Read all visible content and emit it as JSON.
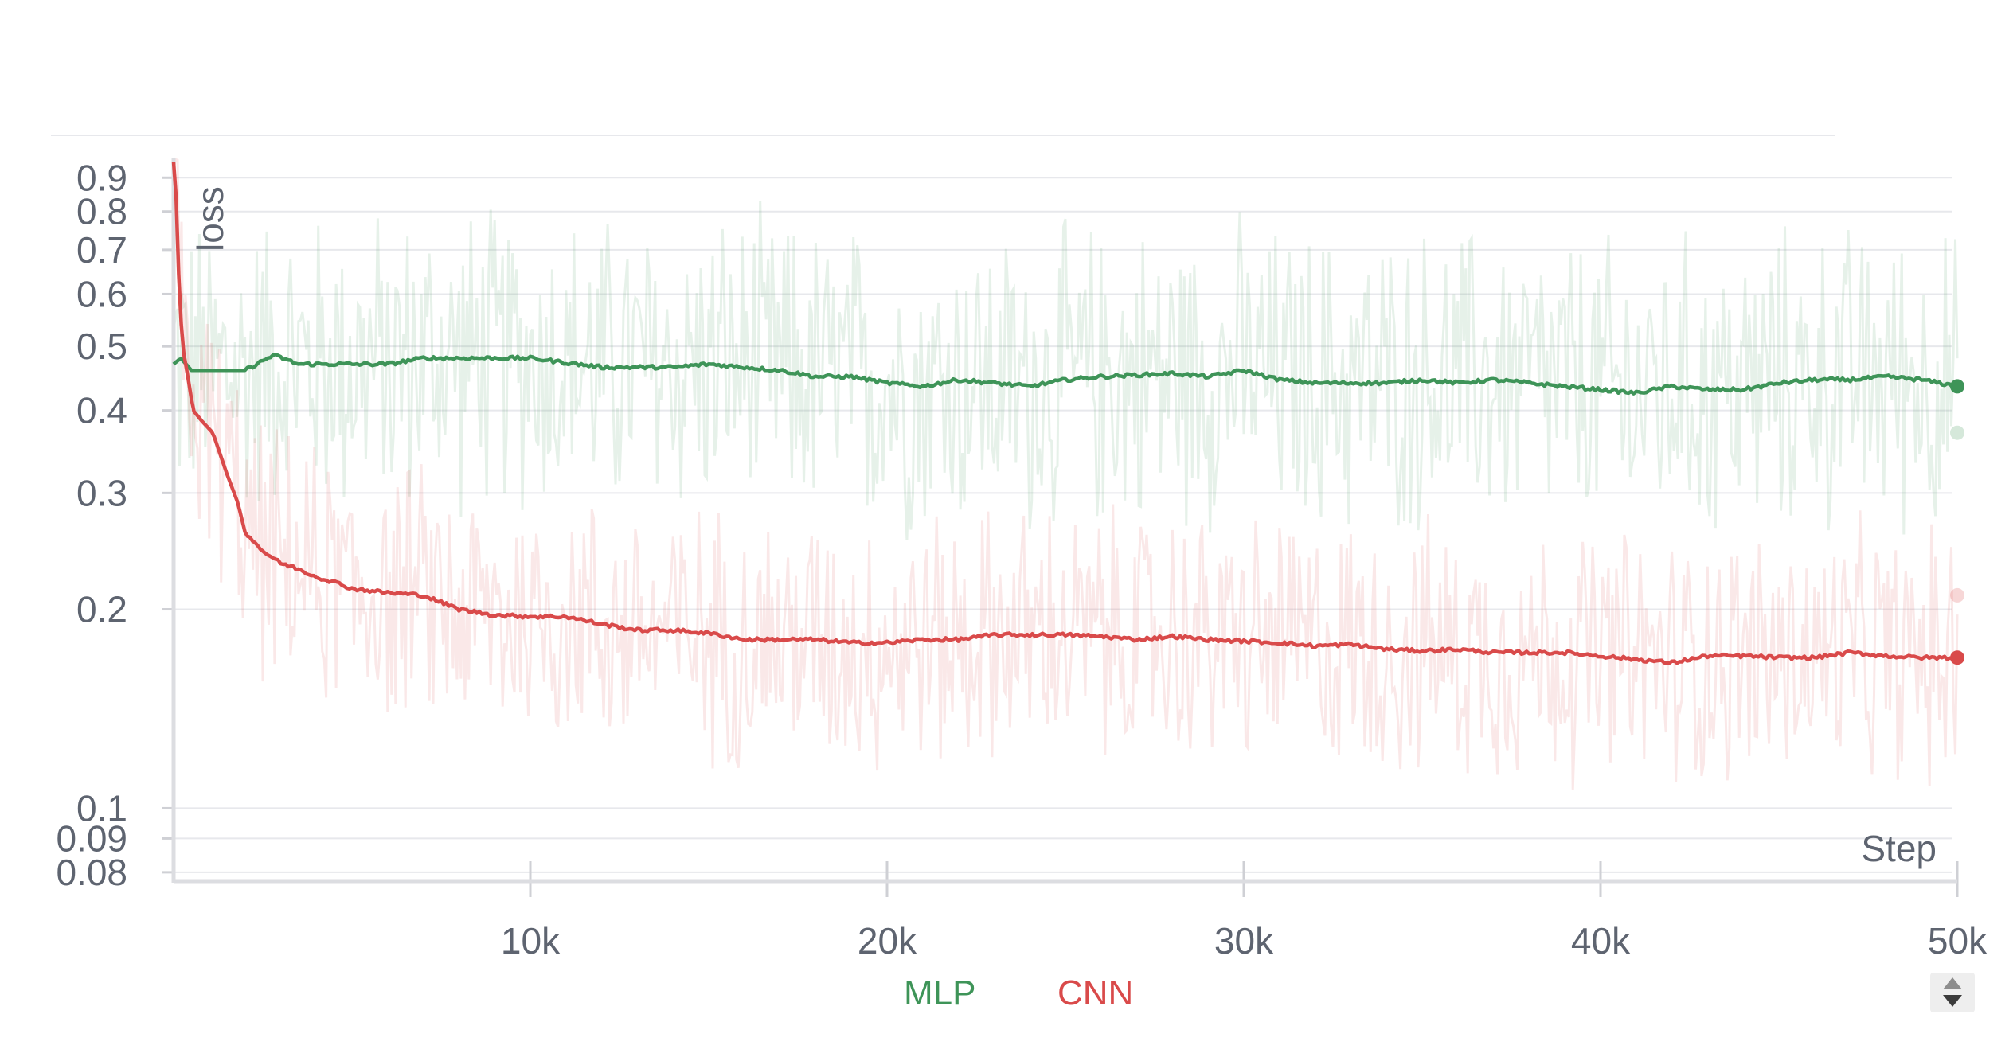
{
  "chart_data": {
    "type": "line",
    "ylabel": "loss",
    "xlabel": "Step",
    "y_scale": "log",
    "xlim": [
      0,
      50000
    ],
    "ylim": [
      0.078,
      0.96
    ],
    "x_ticks": [
      {
        "value": 10000,
        "label": "10k"
      },
      {
        "value": 20000,
        "label": "20k"
      },
      {
        "value": 30000,
        "label": "30k"
      },
      {
        "value": 40000,
        "label": "40k"
      },
      {
        "value": 50000,
        "label": "50k"
      }
    ],
    "y_ticks": [
      {
        "value": 0.9,
        "label": "0.9"
      },
      {
        "value": 0.8,
        "label": "0.8"
      },
      {
        "value": 0.7,
        "label": "0.7"
      },
      {
        "value": 0.6,
        "label": "0.6"
      },
      {
        "value": 0.5,
        "label": "0.5"
      },
      {
        "value": 0.4,
        "label": "0.4"
      },
      {
        "value": 0.3,
        "label": "0.3"
      },
      {
        "value": 0.2,
        "label": "0.2"
      },
      {
        "value": 0.1,
        "label": "0.1"
      },
      {
        "value": 0.09,
        "label": "0.09"
      },
      {
        "value": 0.08,
        "label": "0.08"
      }
    ],
    "grid": true,
    "legend_position": "bottom-center",
    "series": [
      {
        "name": "MLP",
        "color": "#3e9458",
        "raw_band": {
          "low": 0.25,
          "high": 0.72,
          "last": 0.37
        },
        "smoothed": [
          [
            0,
            0.47
          ],
          [
            200,
            0.48
          ],
          [
            500,
            0.46
          ],
          [
            1000,
            0.46
          ],
          [
            2000,
            0.46
          ],
          [
            2800,
            0.485
          ],
          [
            3500,
            0.47
          ],
          [
            5000,
            0.47
          ],
          [
            6000,
            0.47
          ],
          [
            7000,
            0.48
          ],
          [
            9000,
            0.48
          ],
          [
            10000,
            0.48
          ],
          [
            12000,
            0.465
          ],
          [
            14000,
            0.465
          ],
          [
            15000,
            0.47
          ],
          [
            17000,
            0.46
          ],
          [
            18000,
            0.45
          ],
          [
            19000,
            0.45
          ],
          [
            20000,
            0.44
          ],
          [
            21000,
            0.435
          ],
          [
            22000,
            0.445
          ],
          [
            23000,
            0.44
          ],
          [
            24000,
            0.435
          ],
          [
            25000,
            0.445
          ],
          [
            26000,
            0.45
          ],
          [
            28000,
            0.455
          ],
          [
            29000,
            0.45
          ],
          [
            30000,
            0.46
          ],
          [
            31000,
            0.445
          ],
          [
            32000,
            0.44
          ],
          [
            33000,
            0.44
          ],
          [
            34000,
            0.44
          ],
          [
            35000,
            0.445
          ],
          [
            36000,
            0.44
          ],
          [
            37000,
            0.445
          ],
          [
            38000,
            0.44
          ],
          [
            39000,
            0.435
          ],
          [
            40000,
            0.43
          ],
          [
            41000,
            0.425
          ],
          [
            42000,
            0.435
          ],
          [
            43000,
            0.43
          ],
          [
            44000,
            0.43
          ],
          [
            45000,
            0.44
          ],
          [
            46000,
            0.445
          ],
          [
            47000,
            0.445
          ],
          [
            48000,
            0.45
          ],
          [
            49000,
            0.445
          ],
          [
            50000,
            0.435
          ]
        ]
      },
      {
        "name": "CNN",
        "color": "#d94a4a",
        "raw_band": {
          "low": 0.11,
          "high": 0.27,
          "last": 0.21
        },
        "smoothed": [
          [
            0,
            0.95
          ],
          [
            100,
            0.8
          ],
          [
            150,
            0.62
          ],
          [
            250,
            0.5
          ],
          [
            400,
            0.45
          ],
          [
            550,
            0.4
          ],
          [
            800,
            0.385
          ],
          [
            1100,
            0.37
          ],
          [
            1500,
            0.32
          ],
          [
            1800,
            0.29
          ],
          [
            2000,
            0.262
          ],
          [
            2500,
            0.245
          ],
          [
            3000,
            0.235
          ],
          [
            3500,
            0.23
          ],
          [
            4000,
            0.224
          ],
          [
            4500,
            0.22
          ],
          [
            5000,
            0.215
          ],
          [
            6000,
            0.212
          ],
          [
            7000,
            0.21
          ],
          [
            8000,
            0.2
          ],
          [
            9000,
            0.196
          ],
          [
            10000,
            0.195
          ],
          [
            11000,
            0.195
          ],
          [
            12000,
            0.19
          ],
          [
            13000,
            0.186
          ],
          [
            14000,
            0.186
          ],
          [
            15000,
            0.184
          ],
          [
            16000,
            0.18
          ],
          [
            17000,
            0.18
          ],
          [
            18000,
            0.18
          ],
          [
            19000,
            0.178
          ],
          [
            20000,
            0.178
          ],
          [
            21000,
            0.18
          ],
          [
            22000,
            0.18
          ],
          [
            23000,
            0.183
          ],
          [
            24000,
            0.183
          ],
          [
            25000,
            0.183
          ],
          [
            26000,
            0.182
          ],
          [
            27000,
            0.18
          ],
          [
            28000,
            0.182
          ],
          [
            29000,
            0.18
          ],
          [
            30000,
            0.179
          ],
          [
            31000,
            0.178
          ],
          [
            32000,
            0.176
          ],
          [
            33000,
            0.177
          ],
          [
            34000,
            0.174
          ],
          [
            35000,
            0.173
          ],
          [
            36000,
            0.174
          ],
          [
            37000,
            0.172
          ],
          [
            38000,
            0.172
          ],
          [
            39000,
            0.172
          ],
          [
            40000,
            0.17
          ],
          [
            41000,
            0.168
          ],
          [
            42000,
            0.166
          ],
          [
            43000,
            0.17
          ],
          [
            44000,
            0.17
          ],
          [
            45000,
            0.169
          ],
          [
            46000,
            0.169
          ],
          [
            47000,
            0.172
          ],
          [
            48000,
            0.17
          ],
          [
            49000,
            0.169
          ],
          [
            50000,
            0.169
          ]
        ]
      }
    ]
  }
}
